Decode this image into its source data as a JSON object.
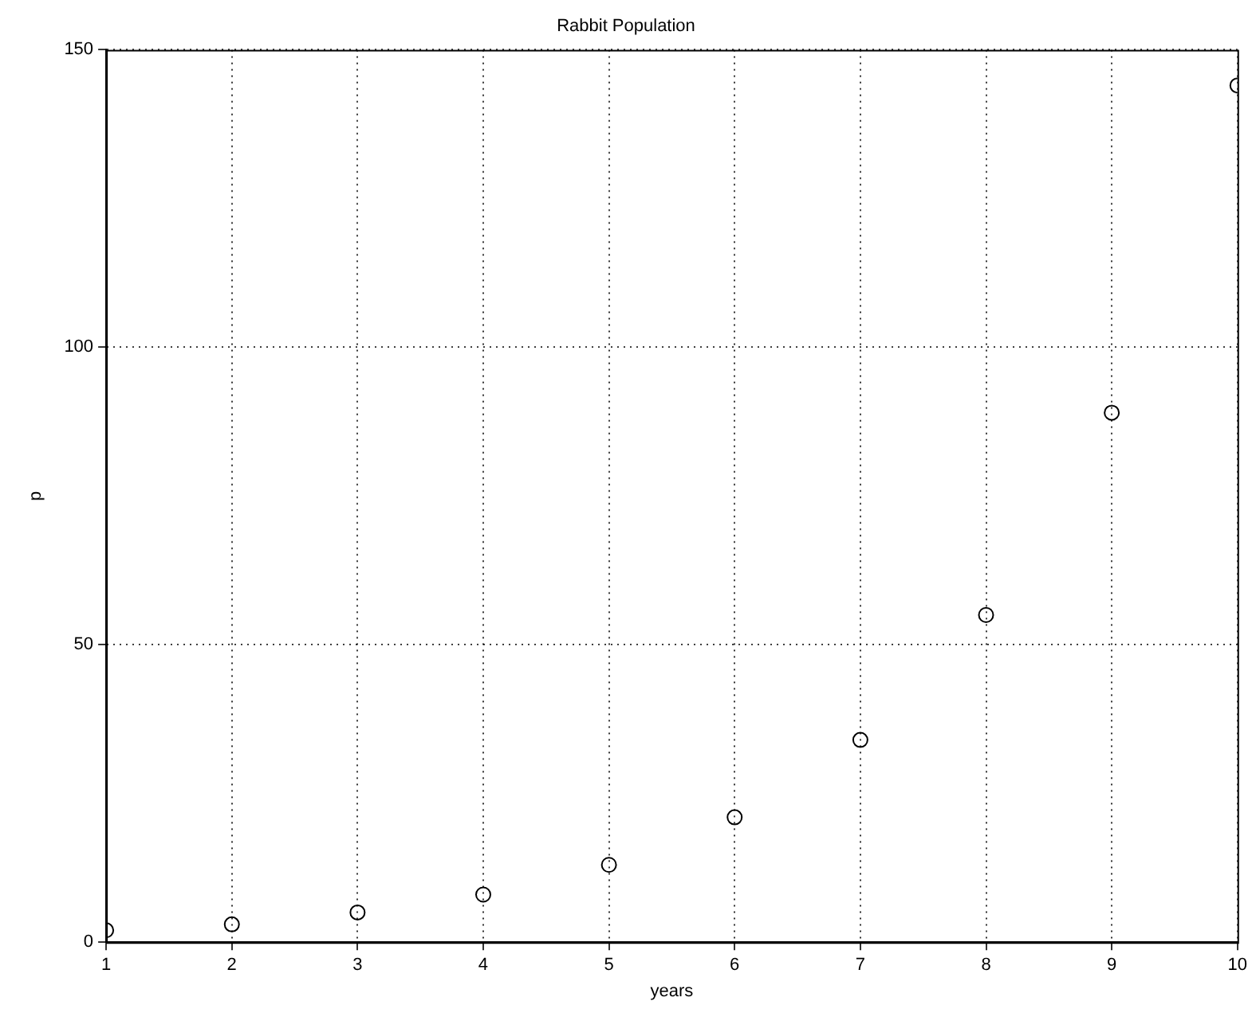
{
  "chart_data": {
    "type": "scatter",
    "title": "Rabbit Population",
    "xlabel": "years",
    "ylabel": "p",
    "x": [
      1,
      2,
      3,
      4,
      5,
      6,
      7,
      8,
      9,
      10
    ],
    "series": [
      {
        "color": "#000000",
        "values": [
          2,
          3,
          5,
          8,
          13,
          21,
          34,
          55,
          89,
          144
        ]
      }
    ],
    "xlim": [
      1,
      10
    ],
    "xticks": [
      1,
      2,
      3,
      4,
      5,
      6,
      7,
      8,
      9,
      10
    ],
    "ylim": [
      0,
      150
    ],
    "yticks": [
      0,
      50,
      100,
      150
    ],
    "grid": true,
    "legend": false,
    "marker": "circle"
  }
}
